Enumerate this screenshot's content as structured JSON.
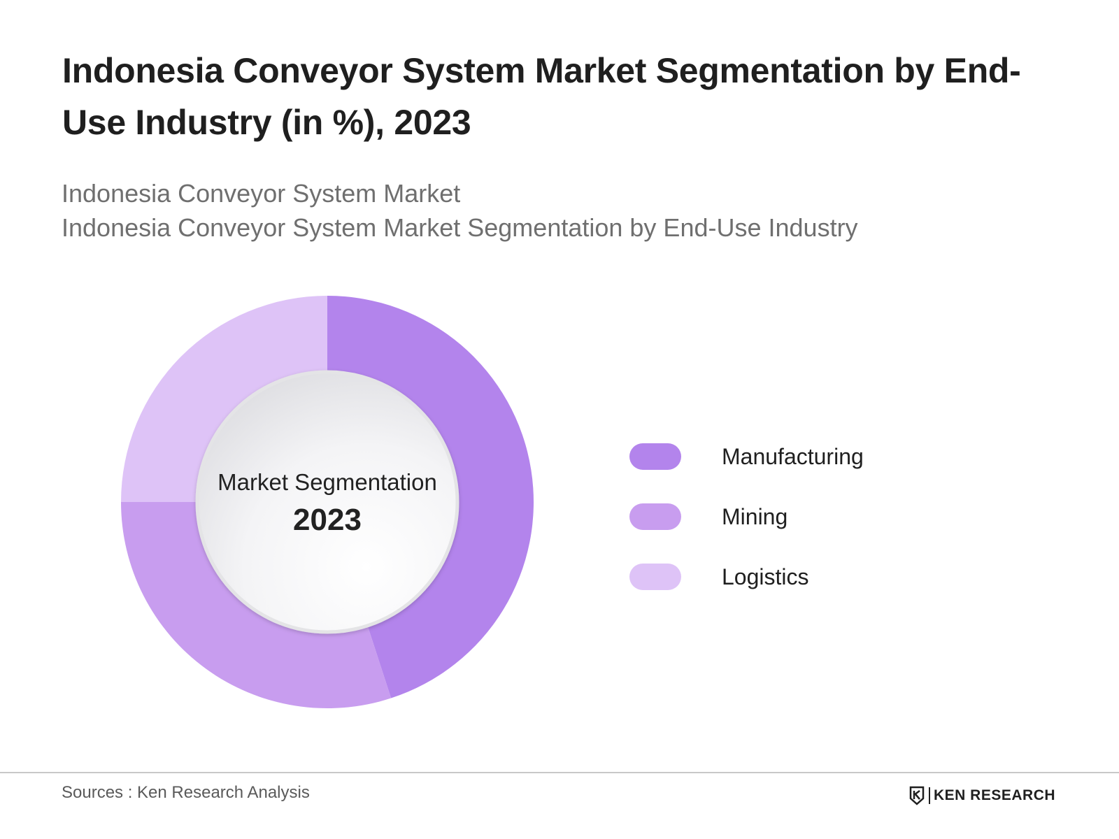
{
  "title": "Indonesia Conveyor System Market Segmentation by End-Use Industry (in %), 2023",
  "subtitles": [
    "Indonesia Conveyor System Market",
    "Indonesia Conveyor System Market Segmentation by End-Use Industry"
  ],
  "center": {
    "title": "Market Segmentation",
    "year": "2023"
  },
  "chart_data": {
    "type": "pie",
    "variant": "donut",
    "categories": [
      "Manufacturing",
      "Mining",
      "Logistics"
    ],
    "values": [
      45,
      30,
      25
    ],
    "unit": "%",
    "colors": [
      "#b384ec",
      "#c89def",
      "#dec3f7"
    ],
    "legend_position": "right",
    "start_angle": "12 o'clock",
    "direction": "clockwise"
  },
  "footer": {
    "source": "Sources : Ken Research Analysis",
    "logo_text": "KEN RESEARCH"
  }
}
